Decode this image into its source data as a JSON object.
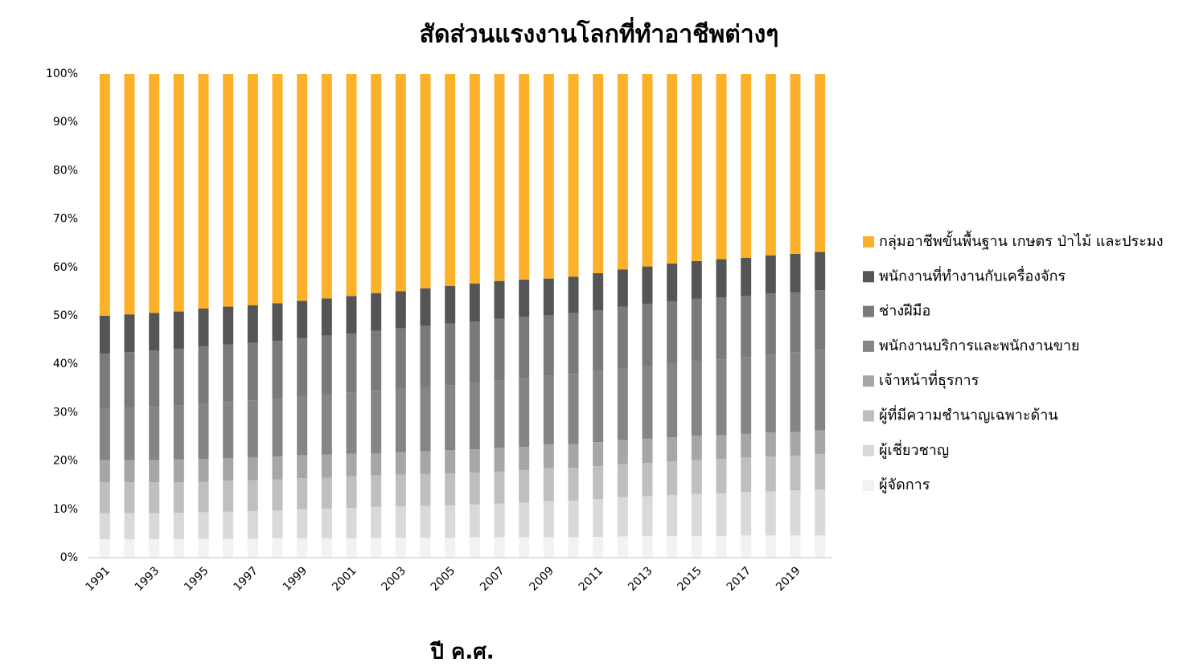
{
  "chart_data": {
    "type": "stacked_bar",
    "title": "สัดส่วนแรงงานโลกที่ทำอาชีพต่างๆ",
    "x_label": "ปี ค.ศ.",
    "categories": [
      "1991",
      null,
      "1993",
      null,
      "1995",
      null,
      "1997",
      null,
      "1999",
      null,
      "2001",
      null,
      "2003",
      null,
      "2005",
      null,
      "2007",
      null,
      "2009",
      null,
      "2011",
      null,
      "2013",
      null,
      "2015",
      null,
      "2017",
      null,
      "2019",
      null
    ],
    "ylim": [
      0,
      100
    ],
    "yticks": [
      {
        "value": 0,
        "label": "0%"
      },
      {
        "value": 10,
        "label": "10%"
      },
      {
        "value": 20,
        "label": "20%"
      },
      {
        "value": 30,
        "label": "30%"
      },
      {
        "value": 40,
        "label": "40%"
      },
      {
        "value": 50,
        "label": "50%"
      },
      {
        "value": 60,
        "label": "60%"
      },
      {
        "value": 70,
        "label": "70%"
      },
      {
        "value": 80,
        "label": "80%"
      },
      {
        "value": 90,
        "label": "90%"
      },
      {
        "value": 100,
        "label": "100%"
      }
    ],
    "legend": "right",
    "series": [
      {
        "name": "กลุ่มอาชีพขั้นพื้นฐาน เกษตร ป่าไม้ และประมง",
        "color": "#fdb12a",
        "values": [
          50.0,
          49.7,
          49.4,
          49.1,
          48.5,
          48.1,
          47.8,
          47.4,
          46.9,
          46.4,
          45.9,
          45.3,
          44.9,
          44.3,
          43.8,
          43.3,
          42.8,
          42.5,
          42.3,
          41.9,
          41.2,
          40.4,
          39.8,
          39.2,
          38.7,
          38.3,
          38.0,
          37.5,
          37.2,
          36.8
        ]
      },
      {
        "name": "พนักงานที่ทำงานกับเครื่องจักร",
        "color": "#555555",
        "values": [
          7.8,
          7.8,
          7.8,
          7.7,
          7.8,
          7.8,
          7.8,
          7.8,
          7.7,
          7.7,
          7.8,
          7.8,
          7.7,
          7.8,
          7.8,
          7.9,
          7.8,
          7.7,
          7.6,
          7.5,
          7.7,
          7.7,
          7.7,
          7.8,
          7.8,
          7.9,
          7.9,
          7.9,
          7.9,
          7.9
        ]
      },
      {
        "name": "ช่างฝีมือ",
        "color": "#7a7a7a",
        "values": [
          11.4,
          11.5,
          11.6,
          11.7,
          11.9,
          11.9,
          11.9,
          11.9,
          12.0,
          12.2,
          12.1,
          12.4,
          12.5,
          12.6,
          12.7,
          12.7,
          12.8,
          12.8,
          12.4,
          12.6,
          12.5,
          12.7,
          12.8,
          12.8,
          12.8,
          12.8,
          12.6,
          12.6,
          12.5,
          12.3
        ]
      },
      {
        "name": "พนักงานบริการและพนักงานขาย",
        "color": "#858585",
        "values": [
          10.6,
          10.8,
          11.0,
          11.2,
          11.4,
          11.6,
          11.8,
          12.0,
          12.2,
          12.4,
          12.7,
          12.9,
          13.1,
          13.3,
          13.5,
          13.7,
          13.9,
          14.1,
          14.3,
          14.5,
          14.7,
          14.9,
          15.1,
          15.3,
          15.5,
          15.7,
          15.9,
          16.1,
          16.4,
          16.7
        ]
      },
      {
        "name": "เจ้าหน้าที่ธุรการ",
        "color": "#a6a6a6",
        "values": [
          4.6,
          4.6,
          4.6,
          4.7,
          4.7,
          4.7,
          4.7,
          4.7,
          4.8,
          4.8,
          4.7,
          4.6,
          4.6,
          4.7,
          4.8,
          4.8,
          4.9,
          4.8,
          4.9,
          4.9,
          5.0,
          5.0,
          5.0,
          5.0,
          5.0,
          4.9,
          4.9,
          5.0,
          4.9,
          4.9
        ]
      },
      {
        "name": "ผู้ที่มีความชำนาญเฉพาะด้าน",
        "color": "#bfbfbf",
        "values": [
          6.4,
          6.4,
          6.4,
          6.3,
          6.3,
          6.4,
          6.4,
          6.4,
          6.4,
          6.4,
          6.5,
          6.5,
          6.6,
          6.6,
          6.6,
          6.6,
          6.6,
          6.7,
          6.8,
          6.8,
          6.8,
          6.8,
          6.9,
          7.0,
          7.0,
          7.1,
          7.1,
          7.2,
          7.2,
          7.3
        ]
      },
      {
        "name": "ผู้เชี่ยวชาญ",
        "color": "#d9d9d9",
        "values": [
          5.4,
          5.4,
          5.4,
          5.5,
          5.5,
          5.6,
          5.7,
          5.8,
          6.0,
          6.1,
          6.3,
          6.4,
          6.5,
          6.6,
          6.7,
          6.8,
          7.0,
          7.2,
          7.5,
          7.6,
          7.8,
          8.1,
          8.2,
          8.4,
          8.7,
          8.8,
          9.0,
          9.1,
          9.3,
          9.5
        ]
      },
      {
        "name": "ผู้จัดการ",
        "color": "#f2f2f2",
        "values": [
          3.8,
          3.8,
          3.8,
          3.8,
          3.9,
          3.9,
          3.9,
          4.0,
          4.0,
          4.0,
          4.0,
          4.1,
          4.1,
          4.1,
          4.1,
          4.2,
          4.2,
          4.2,
          4.2,
          4.2,
          4.3,
          4.4,
          4.5,
          4.5,
          4.5,
          4.5,
          4.6,
          4.6,
          4.6,
          4.6
        ]
      }
    ]
  }
}
